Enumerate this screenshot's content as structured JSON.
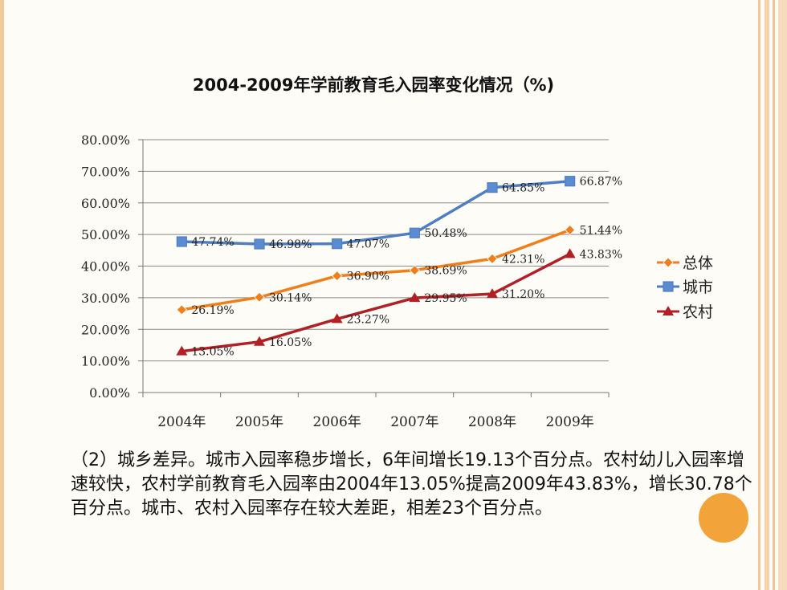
{
  "title": "2004-2009年学前教育毛入园率变化情况（%)",
  "paragraph": "（2）城乡差异。城市入园率稳步增长，6年间增长19.13个百分点。农村幼儿入园率增速较快，农村学前教育毛入园率由2004年13.05%提高2009年43.83%，增长30.78个百分点。城市、农村入园率存在较大差距，相差23个百分点。",
  "colors": {
    "total": "#f07f19",
    "city": "#4f7fc3",
    "rural": "#b12025",
    "accent": "#f2a33a"
  },
  "chart_data": {
    "type": "line",
    "title": "2004-2009年学前教育毛入园率变化情况（%)",
    "categories": [
      "2004年",
      "2005年",
      "2006年",
      "2007年",
      "2008年",
      "2009年"
    ],
    "ylim": [
      0,
      80
    ],
    "yticks": [
      "0.00%",
      "10.00%",
      "20.00%",
      "30.00%",
      "40.00%",
      "50.00%",
      "60.00%",
      "70.00%",
      "80.00%"
    ],
    "grid": true,
    "legend": "right",
    "series": [
      {
        "name": "总体",
        "key": "total",
        "marker": "diamond",
        "values": [
          26.19,
          30.14,
          36.9,
          38.69,
          42.31,
          51.44
        ],
        "labels": [
          "26.19%",
          "30.14%",
          "36.90%",
          "38.69%",
          "42.31%",
          "51.44%"
        ]
      },
      {
        "name": "城市",
        "key": "city",
        "marker": "square",
        "values": [
          47.74,
          46.98,
          47.07,
          50.48,
          64.85,
          66.87
        ],
        "labels": [
          "47.74%",
          "46.98%",
          "47.07%",
          "50.48%",
          "64.85%",
          "66.87%"
        ]
      },
      {
        "name": "农村",
        "key": "rural",
        "marker": "triangle",
        "values": [
          13.05,
          16.05,
          23.27,
          29.95,
          31.2,
          43.83
        ],
        "labels": [
          "13.05%",
          "16.05%",
          "23.27%",
          "29.95%",
          "31.20%",
          "43.83%"
        ]
      }
    ]
  }
}
